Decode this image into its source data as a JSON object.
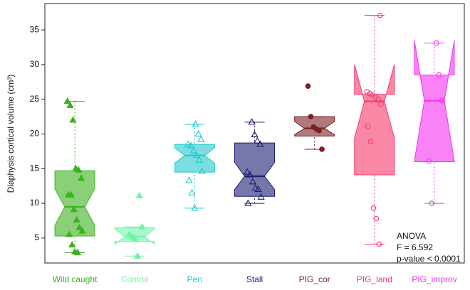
{
  "chart_data": {
    "type": "boxplot",
    "y_label": "Diaphysis cortical volume (cm³)",
    "ylim": [
      1.4,
      38.8
    ],
    "yticks": [
      5,
      10,
      15,
      20,
      25,
      30,
      35
    ],
    "annotations": [
      "ANOVA",
      "F = 6.592",
      "p-value < 0.0001"
    ],
    "boxes": [
      {
        "name": "Wild caught",
        "color": "#3cb11f",
        "marker": "triangle",
        "filled": true,
        "whisker_low": 2.9,
        "q1": 5.3,
        "notch_low": 6.8,
        "median": 9.5,
        "notch_high": 12.1,
        "q3": 14.7,
        "whisker_high": 24.7,
        "points": [
          24.7,
          24.1,
          22.0,
          15.0,
          14.8,
          13.6,
          11.2,
          11.2,
          9.1,
          7.6,
          6.5,
          6.0,
          5.5,
          4.0,
          3.0,
          2.9
        ]
      },
      {
        "name": "Control",
        "color": "#6ff5a8",
        "marker": "triangle",
        "filled": true,
        "whisker_low": 2.4,
        "q1": 4.5,
        "notch_low": 4.1,
        "median": 5.2,
        "notch_high": 6.3,
        "q3": 6.5,
        "whisker_high": 6.6,
        "points": [
          11.1,
          6.6,
          5.5,
          5.2,
          4.9,
          2.4
        ]
      },
      {
        "name": "Pen",
        "color": "#22c8cc",
        "marker": "triangle",
        "filled": false,
        "whisker_low": 9.3,
        "q1": 14.5,
        "notch_low": 15.8,
        "median": 16.9,
        "notch_high": 18.0,
        "q3": 18.5,
        "whisker_high": 21.4,
        "points": [
          21.4,
          20.0,
          19.2,
          18.5,
          18.3,
          17.6,
          16.9,
          16.2,
          14.6,
          13.3,
          11.5,
          9.3
        ]
      },
      {
        "name": "Stall",
        "color": "#1c1c72",
        "marker": "triangle",
        "filled": false,
        "whisker_low": 10.0,
        "q1": 11.0,
        "notch_low": 12.0,
        "median": 13.9,
        "notch_high": 15.9,
        "q3": 18.7,
        "whisker_high": 21.7,
        "points": [
          21.7,
          19.9,
          19.0,
          18.5,
          14.5,
          14.1,
          13.1,
          12.2,
          12.0,
          10.9,
          10.0
        ]
      },
      {
        "name": "PIG_cor",
        "color": "#7b1f24",
        "marker": "circle",
        "filled": true,
        "whisker_low": 17.8,
        "q1": 19.7,
        "notch_low": 19.9,
        "median": 20.8,
        "notch_high": 21.8,
        "q3": 22.5,
        "whisker_high": 22.5,
        "points": [
          26.9,
          22.5,
          21.0,
          20.7,
          20.5,
          17.8
        ]
      },
      {
        "name": "PIG_land",
        "color": "#f5386a",
        "marker": "circle",
        "filled": false,
        "whisker_low": 4.1,
        "q1": 14.1,
        "notch_low": 19.4,
        "median": 24.7,
        "notch_high": 30.0,
        "q3": 25.7,
        "whisker_high": 37.1,
        "points": [
          37.1,
          26.1,
          25.8,
          25.6,
          25.3,
          25.0,
          24.3,
          21.1,
          18.9,
          9.3,
          7.8,
          4.1
        ]
      },
      {
        "name": "PIG_improv",
        "color": "#f531f0",
        "marker": "circle",
        "filled": false,
        "whisker_low": 10.0,
        "q1": 16.0,
        "notch_low": 16.1,
        "median": 24.8,
        "notch_high": 33.5,
        "q3": 28.5,
        "whisker_high": 33.1,
        "points": [
          33.1,
          28.5,
          24.8,
          16.1,
          10.0
        ]
      }
    ]
  }
}
